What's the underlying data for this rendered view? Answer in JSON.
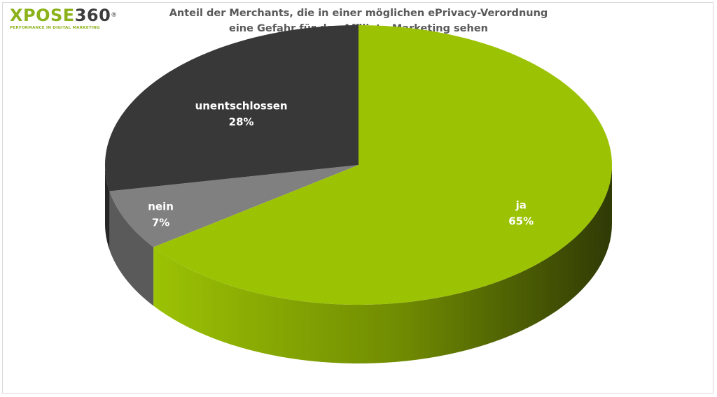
{
  "logo": {
    "brand_a": "XPOSE",
    "brand_b": "360",
    "reg": "®",
    "tagline": "PERFORMANCE IN DIGITAL MARKETING"
  },
  "title_line1": "Anteil der Merchants, die in einer möglichen ePrivacy-Verordnung",
  "title_line2": "eine Gefahr für das Affiliate-Marketing sehen",
  "chart_data": {
    "type": "pie",
    "title": "Anteil der Merchants, die in einer möglichen ePrivacy-Verordnung eine Gefahr für das Affiliate-Marketing sehen",
    "categories": [
      "ja",
      "nein",
      "unentschlossen"
    ],
    "values": [
      65,
      7,
      28
    ],
    "value_labels": [
      "65%",
      "7%",
      "28%"
    ],
    "colors": [
      "#9cc204",
      "#808080",
      "#383838"
    ],
    "side_colors": [
      "#6f8a02",
      "#5a5a5a",
      "#262626"
    ],
    "style": "3d",
    "legend": "none"
  }
}
